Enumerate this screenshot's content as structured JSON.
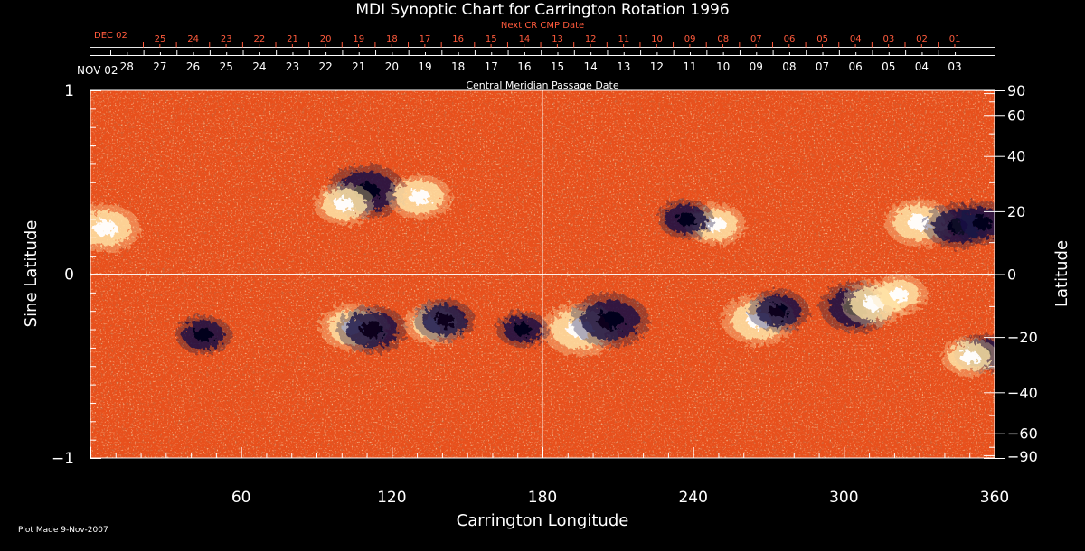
{
  "colors": {
    "background": "#000000",
    "map_base": "#e8501c",
    "map_dark": "#b2300f",
    "bright": "#ffffff",
    "pale": "#ffe3a8",
    "negative": "#1a1345",
    "axis": "#ffffff",
    "next_axis": "#ff5a3c"
  },
  "chart_data": {
    "type": "heatmap",
    "title": "MDI Synoptic Chart for Carrington Rotation 1996",
    "xlabel": "Carrington Longitude",
    "ylabel_left": "Sine Latitude",
    "ylabel_right": "Latitude",
    "xlim": [
      0,
      360
    ],
    "ylim": [
      -1,
      1
    ],
    "x_ticks": [
      60,
      120,
      180,
      240,
      300,
      360
    ],
    "y_ticks_left": [
      -1,
      0,
      1
    ],
    "y_ticks_left_labels": [
      "−1",
      "0",
      "1"
    ],
    "y_ticks_right": [
      90,
      60,
      40,
      20,
      0,
      -20,
      -40,
      -60,
      -90
    ],
    "y_ticks_right_labels": [
      "90",
      "60",
      "40",
      "20",
      "0",
      "−20",
      "−40",
      "−60",
      "−90"
    ],
    "grid_lines": {
      "x": 180,
      "y": 0
    },
    "cmp_axis": {
      "label": "Central Meridian Passage Date",
      "start_label": "NOV 02",
      "days": [
        "28",
        "27",
        "26",
        "25",
        "24",
        "23",
        "22",
        "21",
        "20",
        "19",
        "18",
        "17",
        "16",
        "15",
        "14",
        "13",
        "12",
        "11",
        "10",
        "09",
        "08",
        "07",
        "06",
        "05",
        "04",
        "03"
      ]
    },
    "next_cmp_axis": {
      "label": "Next CR CMP Date",
      "start_label": "DEC 02",
      "days": [
        "25",
        "24",
        "23",
        "22",
        "21",
        "20",
        "19",
        "18",
        "17",
        "16",
        "15",
        "14",
        "13",
        "12",
        "11",
        "10",
        "09",
        "08",
        "07",
        "06",
        "05",
        "04",
        "03",
        "02",
        "01"
      ]
    },
    "active_regions": [
      {
        "lon": 110,
        "sinlat": 0.45,
        "polarity": "negative",
        "strength": 1.0
      },
      {
        "lon": 131,
        "sinlat": 0.42,
        "polarity": "positive",
        "strength": 0.7
      },
      {
        "lon": 101,
        "sinlat": 0.38,
        "polarity": "positive",
        "strength": 0.6
      },
      {
        "lon": 6,
        "sinlat": 0.25,
        "polarity": "positive",
        "strength": 0.8
      },
      {
        "lon": 249,
        "sinlat": 0.27,
        "polarity": "positive",
        "strength": 0.6
      },
      {
        "lon": 237,
        "sinlat": 0.3,
        "polarity": "negative",
        "strength": 0.5
      },
      {
        "lon": 330,
        "sinlat": 0.28,
        "polarity": "positive",
        "strength": 0.8
      },
      {
        "lon": 345,
        "sinlat": 0.26,
        "polarity": "negative",
        "strength": 0.7
      },
      {
        "lon": 355,
        "sinlat": 0.28,
        "polarity": "negative",
        "strength": 0.6
      },
      {
        "lon": 195,
        "sinlat": -0.3,
        "polarity": "positive",
        "strength": 1.0
      },
      {
        "lon": 207,
        "sinlat": -0.25,
        "polarity": "negative",
        "strength": 1.0
      },
      {
        "lon": 105,
        "sinlat": -0.29,
        "polarity": "positive",
        "strength": 0.8
      },
      {
        "lon": 112,
        "sinlat": -0.3,
        "polarity": "negative",
        "strength": 0.8
      },
      {
        "lon": 137,
        "sinlat": -0.27,
        "polarity": "positive",
        "strength": 0.6
      },
      {
        "lon": 141,
        "sinlat": -0.25,
        "polarity": "negative",
        "strength": 0.6
      },
      {
        "lon": 266,
        "sinlat": -0.25,
        "polarity": "positive",
        "strength": 0.9
      },
      {
        "lon": 274,
        "sinlat": -0.2,
        "polarity": "negative",
        "strength": 0.6
      },
      {
        "lon": 305,
        "sinlat": -0.18,
        "polarity": "negative",
        "strength": 0.9
      },
      {
        "lon": 312,
        "sinlat": -0.16,
        "polarity": "positive",
        "strength": 0.7
      },
      {
        "lon": 322,
        "sinlat": -0.11,
        "polarity": "positive",
        "strength": 0.5
      },
      {
        "lon": 355,
        "sinlat": -0.43,
        "polarity": "negative",
        "strength": 0.5
      },
      {
        "lon": 350,
        "sinlat": -0.45,
        "polarity": "positive",
        "strength": 0.5
      },
      {
        "lon": 45,
        "sinlat": -0.33,
        "polarity": "negative",
        "strength": 0.5
      },
      {
        "lon": 172,
        "sinlat": -0.3,
        "polarity": "negative",
        "strength": 0.4
      }
    ]
  },
  "footer": {
    "plot_made": "Plot Made  9-Nov-2007"
  }
}
